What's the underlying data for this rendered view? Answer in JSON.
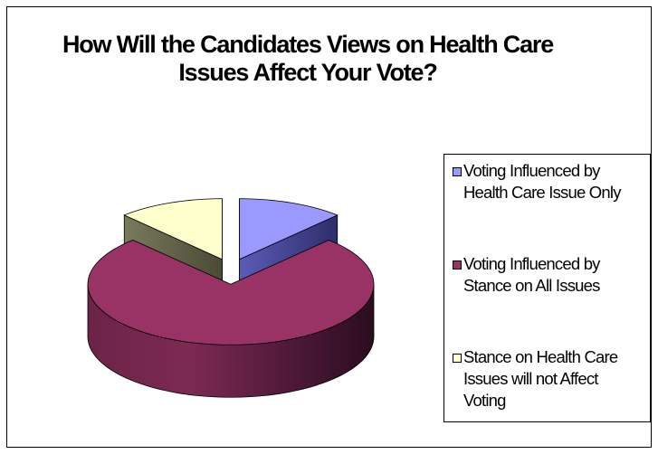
{
  "chart_data": {
    "type": "pie",
    "variant": "3d-exploded",
    "title_lines": [
      "How Will the Candidates Views on Health Care",
      "Issues Affect Your Vote?"
    ],
    "slices": [
      {
        "label": "Voting Influenced by Health Care Issue Only",
        "value": 12,
        "color": "#9999ff"
      },
      {
        "label": "Voting Influenced by Stance on All Issues",
        "value": 76,
        "color": "#993366"
      },
      {
        "label": "Stance on Health Care Issues will not Affect Voting",
        "value": 12,
        "color": "#ffffcc"
      }
    ],
    "legend": {
      "position": "right",
      "entries": [
        {
          "lines": [
            "Voting Influenced by",
            "Health Care Issue Only"
          ],
          "color": "#9999ff"
        },
        {
          "lines": [
            "Voting Influenced by",
            "Stance on All Issues"
          ],
          "color": "#993366"
        },
        {
          "lines": [
            "Stance on Health Care",
            "Issues will not Affect",
            "Voting"
          ],
          "color": "#ffffcc"
        }
      ]
    }
  }
}
